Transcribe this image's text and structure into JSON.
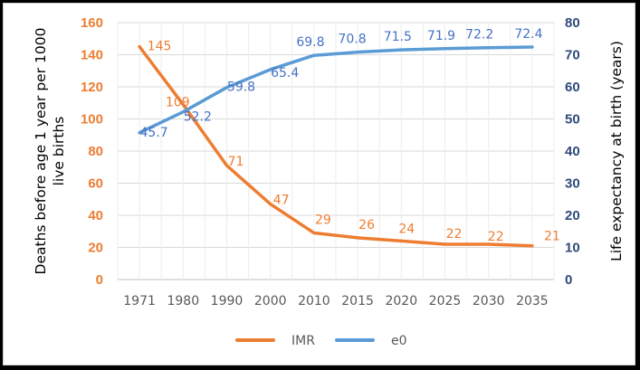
{
  "chart_data": {
    "type": "line",
    "categories": [
      "1971",
      "1980",
      "1990",
      "2000",
      "2010",
      "2015",
      "2020",
      "2025",
      "2030",
      "2035"
    ],
    "series": [
      {
        "name": "IMR",
        "axis": "left",
        "color": "#ED7D31",
        "values": [
          145,
          109,
          71,
          47,
          29,
          26,
          24,
          22,
          22,
          21
        ],
        "labels": [
          "145",
          "109",
          "71",
          "47",
          "29",
          "26",
          "24",
          "22",
          "22",
          "21"
        ]
      },
      {
        "name": "e0",
        "axis": "right",
        "color": "#5B9BD5",
        "label_color": "#4472C4",
        "values": [
          45.7,
          52.2,
          59.8,
          65.4,
          69.8,
          70.8,
          71.5,
          71.9,
          72.2,
          72.4
        ],
        "labels": [
          "45.7",
          "52.2",
          "59.8",
          "65.4",
          "69.8",
          "70.8",
          "71.5",
          "71.9",
          "72.2",
          "72.4"
        ]
      }
    ],
    "y_left": {
      "label": "Deaths before age 1 year per 1000 live births",
      "label_lines": [
        "Deaths before age 1 year per 1000",
        "live births"
      ],
      "ylim": [
        0,
        160
      ],
      "ticks": [
        "0",
        "20",
        "40",
        "60",
        "80",
        "100",
        "120",
        "140",
        "160"
      ],
      "tick_color": "#ED7D31"
    },
    "y_right": {
      "label": "Life expectancy at birth (years)",
      "ylim": [
        0,
        80
      ],
      "ticks": [
        "0",
        "10",
        "20",
        "30",
        "40",
        "50",
        "60",
        "70",
        "80"
      ],
      "tick_color": "#2F4A7A"
    },
    "xlabel": "",
    "grid": true,
    "legend": {
      "placement": "bottom",
      "entries": [
        "IMR",
        "e0"
      ]
    }
  }
}
